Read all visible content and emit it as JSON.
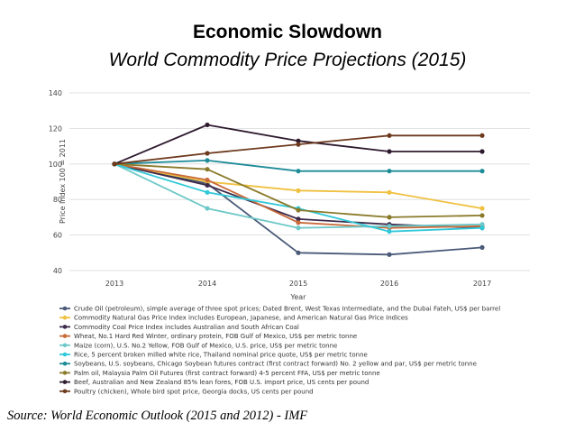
{
  "slide": {
    "title": "Economic Slowdown",
    "subtitle": "World Commodity Price Projections (2015)",
    "source": "Source: World Economic Outlook (2015 and 2012) - IMF"
  },
  "chart_data": {
    "type": "line",
    "xlabel": "Year",
    "ylabel": "Price Index 100 = 2011",
    "x": [
      "2013",
      "2014",
      "2015",
      "2016",
      "2017"
    ],
    "ylim": [
      40,
      140
    ],
    "yticks": [
      40,
      60,
      80,
      100,
      120,
      140
    ],
    "grid": true,
    "legend_position": "bottom",
    "series": [
      {
        "name": "Crude Oil (petroleum), simple average of three spot prices; Dated Brent, West Texas Intermediate, and the Dubai Fateh, US$ per barrel",
        "color": "#4a5a78",
        "values": [
          100,
          89,
          50,
          49,
          53
        ]
      },
      {
        "name": "Commodity Natural Gas Price Index includes European, Japanese, and American Natural Gas Price Indices",
        "color": "#f0c040",
        "values": [
          100,
          90,
          85,
          84,
          75
        ]
      },
      {
        "name": "Commodity Coal Price Index includes Australian and South African Coal",
        "color": "#3d2a4a",
        "values": [
          100,
          88,
          69,
          66,
          64
        ]
      },
      {
        "name": "Wheat, No.1 Hard Red Winter, ordinary protein, FOB Gulf of Mexico, US$ per metric tonne",
        "color": "#c86a3a",
        "values": [
          100,
          91,
          67,
          64,
          65
        ]
      },
      {
        "name": "Maize (corn), U.S. No.2 Yellow, FOB Gulf of Mexico, U.S. price, US$ per metric tonne",
        "color": "#6ec8c8",
        "values": [
          100,
          75,
          64,
          65,
          66
        ]
      },
      {
        "name": "Rice, 5 percent broken milled white rice, Thailand nominal price quote, US$ per metric tonne",
        "color": "#30c8d8",
        "values": [
          100,
          84,
          75,
          62,
          64
        ]
      },
      {
        "name": "Soybeans, U.S. soybeans, Chicago Soybean futures contract (first contract forward) No. 2 yellow and par, US$ per metric tonne",
        "color": "#1e8c98",
        "values": [
          100,
          102,
          96,
          96,
          96
        ]
      },
      {
        "name": "Palm oil, Malaysia Palm Oil Futures (first contract forward) 4-5 percent FFA, US$ per metric tonne",
        "color": "#8a7a2a",
        "values": [
          100,
          97,
          74,
          70,
          71
        ]
      },
      {
        "name": "Beef, Australian and New Zealand 85% lean fores, FOB U.S. import price, US cents per pound",
        "color": "#2e1a2e",
        "values": [
          100,
          122,
          113,
          107,
          107
        ]
      },
      {
        "name": "Poultry (chicken), Whole bird spot price, Georgia docks, US cents per pound",
        "color": "#6e3a1e",
        "values": [
          100,
          106,
          111,
          116,
          116
        ]
      }
    ]
  }
}
